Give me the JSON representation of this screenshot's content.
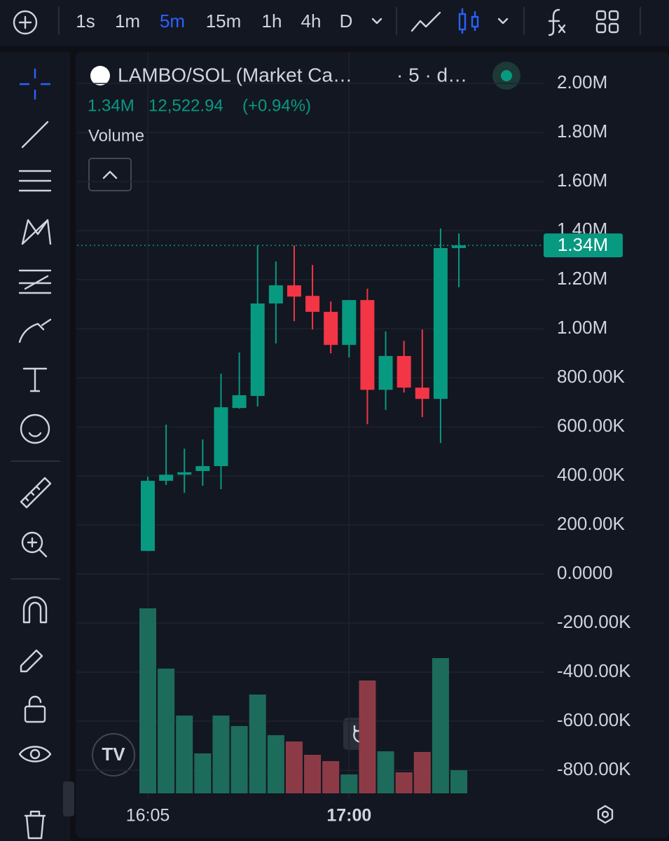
{
  "toolbar": {
    "intervals": [
      "1s",
      "1m",
      "5m",
      "15m",
      "1h",
      "4h",
      "D"
    ],
    "active": "5m"
  },
  "chart_data": {
    "type": "candlestick",
    "symbol": "LAMBO/SOL (Market Ca…",
    "interval": "· 5 · d…",
    "change": "12,522.94",
    "change_pct": "(+0.94%)",
    "study": "Volume",
    "up_color": "#089981",
    "down_color": "#f23645",
    "up_volume_color": "#1d6b5b",
    "down_volume_color": "#8c3b46",
    "categories": [
      "16:05",
      null,
      null,
      null,
      null,
      null,
      null,
      null,
      null,
      null,
      null,
      "17:00",
      null,
      null,
      null,
      null,
      null,
      null
    ],
    "open": [
      94000,
      380000,
      405000,
      420000,
      440000,
      677000,
      726000,
      1103000,
      1177000,
      1134000,
      1069000,
      934000,
      1117000,
      751000,
      889000,
      760000,
      714000,
      1329000
    ],
    "high": [
      397000,
      609000,
      511000,
      549000,
      817000,
      903000,
      1340000,
      1274000,
      1340000,
      1260000,
      1111000,
      1117000,
      1163000,
      989000,
      951000,
      997000,
      1409000,
      1389000
    ],
    "low": [
      94000,
      363000,
      331000,
      360000,
      346000,
      674000,
      683000,
      940000,
      1031000,
      997000,
      900000,
      883000,
      611000,
      669000,
      740000,
      640000,
      534000,
      1169000
    ],
    "close": [
      380000,
      405000,
      415000,
      440000,
      680000,
      729000,
      1103000,
      1177000,
      1131000,
      1069000,
      934000,
      1117000,
      751000,
      889000,
      760000,
      714000,
      1329000,
      1340000
    ],
    "volume": [
      264,
      178,
      111,
      57,
      111,
      96,
      141,
      83,
      74,
      55,
      46,
      27,
      161,
      60,
      30,
      59,
      193,
      33
    ],
    "last_price": {
      "value": 1340000,
      "label": "1.34M"
    },
    "ylim": [
      -917000,
      2126000
    ],
    "yticks": [
      {
        "value": 2000000,
        "label": "2.00M"
      },
      {
        "value": 1800000,
        "label": "1.80M"
      },
      {
        "value": 1600000,
        "label": "1.60M"
      },
      {
        "value": 1400000,
        "label": "1.40M"
      },
      {
        "value": 1200000,
        "label": "1.20M"
      },
      {
        "value": 1000000,
        "label": "1.00M"
      },
      {
        "value": 800000,
        "label": "800.00K"
      },
      {
        "value": 600000,
        "label": "600.00K"
      },
      {
        "value": 400000,
        "label": "400.00K"
      },
      {
        "value": 200000,
        "label": "200.00K"
      },
      {
        "value": 0,
        "label": "0.0000"
      },
      {
        "value": -200000,
        "label": "-200.00K"
      },
      {
        "value": -400000,
        "label": "-400.00K"
      },
      {
        "value": -600000,
        "label": "-600.00K"
      },
      {
        "value": -800000,
        "label": "-800.00K"
      }
    ],
    "grid": true
  }
}
